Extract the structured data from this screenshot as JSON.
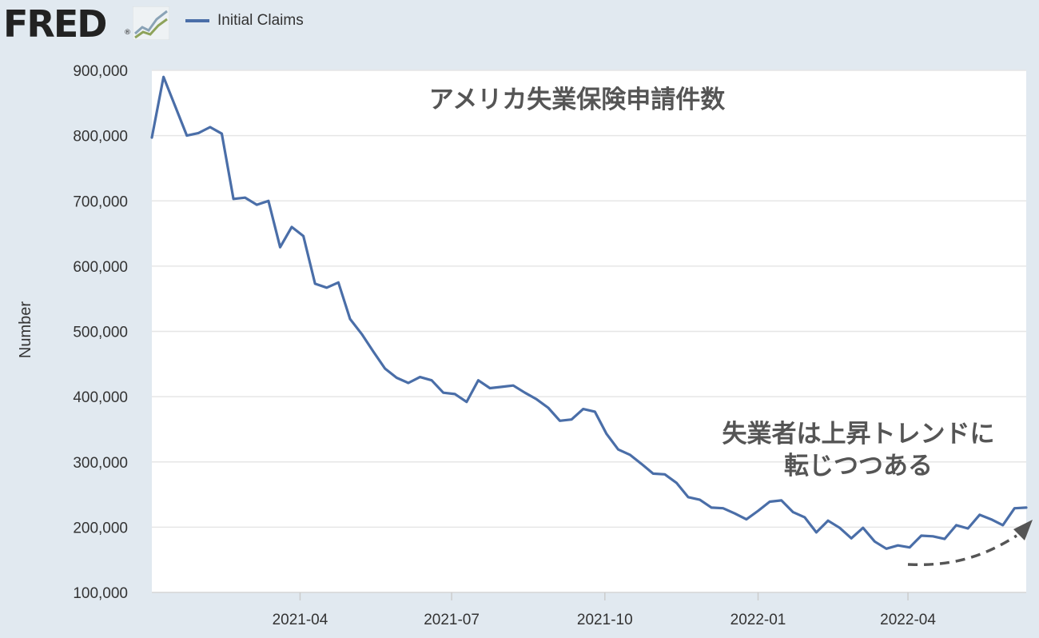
{
  "header": {
    "logo_text": "FRED",
    "logo_reg": "®",
    "logo_icon": "line-chart-icon"
  },
  "colors": {
    "series": "#4a6ea8",
    "background": "#e1e9f0",
    "plot_bg": "#ffffff",
    "grid": "#e6e6e6",
    "annotation": "#555555"
  },
  "chart_data": {
    "type": "line",
    "ylabel": "Number",
    "xlabel": "",
    "ylim": [
      100000,
      900000
    ],
    "yticks": [
      100000,
      200000,
      300000,
      400000,
      500000,
      600000,
      700000,
      800000,
      900000
    ],
    "ytick_labels": [
      "100,000",
      "200,000",
      "300,000",
      "400,000",
      "500,000",
      "600,000",
      "700,000",
      "800,000",
      "900,000"
    ],
    "xlim": [
      "2021-01-02",
      "2022-06-11"
    ],
    "xticks": [
      "2021-04-01",
      "2021-07-01",
      "2021-10-01",
      "2022-01-01",
      "2022-04-01"
    ],
    "xtick_labels": [
      "2021-04",
      "2021-07",
      "2021-10",
      "2022-01",
      "2022-04"
    ],
    "grid": true,
    "legend": "top-left",
    "series": [
      {
        "name": "Initial Claims",
        "x": [
          "2021-01-02",
          "2021-01-09",
          "2021-01-16",
          "2021-01-23",
          "2021-01-30",
          "2021-02-06",
          "2021-02-13",
          "2021-02-20",
          "2021-02-27",
          "2021-03-06",
          "2021-03-13",
          "2021-03-20",
          "2021-03-27",
          "2021-04-03",
          "2021-04-10",
          "2021-04-17",
          "2021-04-24",
          "2021-05-01",
          "2021-05-08",
          "2021-05-15",
          "2021-05-22",
          "2021-05-29",
          "2021-06-05",
          "2021-06-12",
          "2021-06-19",
          "2021-06-26",
          "2021-07-03",
          "2021-07-10",
          "2021-07-17",
          "2021-07-24",
          "2021-07-31",
          "2021-08-07",
          "2021-08-14",
          "2021-08-21",
          "2021-08-28",
          "2021-09-04",
          "2021-09-11",
          "2021-09-18",
          "2021-09-25",
          "2021-10-02",
          "2021-10-09",
          "2021-10-16",
          "2021-10-23",
          "2021-10-30",
          "2021-11-06",
          "2021-11-13",
          "2021-11-20",
          "2021-11-27",
          "2021-12-04",
          "2021-12-11",
          "2021-12-18",
          "2021-12-25",
          "2022-01-01",
          "2022-01-08",
          "2022-01-15",
          "2022-01-22",
          "2022-01-29",
          "2022-02-05",
          "2022-02-12",
          "2022-02-19",
          "2022-02-26",
          "2022-03-05",
          "2022-03-12",
          "2022-03-19",
          "2022-03-26",
          "2022-04-02",
          "2022-04-09",
          "2022-04-16",
          "2022-04-23",
          "2022-04-30",
          "2022-05-07",
          "2022-05-14",
          "2022-05-21",
          "2022-05-28",
          "2022-06-04",
          "2022-06-11"
        ],
        "values": [
          797000,
          890000,
          845000,
          800000,
          804000,
          813000,
          803000,
          703000,
          705000,
          694000,
          700000,
          629000,
          660000,
          646000,
          573000,
          567000,
          575000,
          519000,
          496000,
          469000,
          443000,
          429000,
          421000,
          430000,
          425000,
          406000,
          404000,
          392000,
          425000,
          413000,
          415000,
          417000,
          406000,
          396000,
          383000,
          363000,
          365000,
          381000,
          377000,
          343000,
          319000,
          311000,
          297000,
          282000,
          281000,
          268000,
          246000,
          242000,
          230000,
          229000,
          221000,
          212000,
          225000,
          239000,
          241000,
          223000,
          215000,
          192000,
          210000,
          199000,
          183000,
          199000,
          178000,
          167000,
          172000,
          169000,
          187000,
          186000,
          182000,
          203000,
          198000,
          219000,
          212000,
          203000,
          229000,
          230000
        ]
      }
    ],
    "annotations": [
      {
        "text": "アメリカ失業保険申請件数"
      },
      {
        "lines": [
          "失業者は上昇トレンドに",
          "転じつつある"
        ]
      }
    ]
  }
}
